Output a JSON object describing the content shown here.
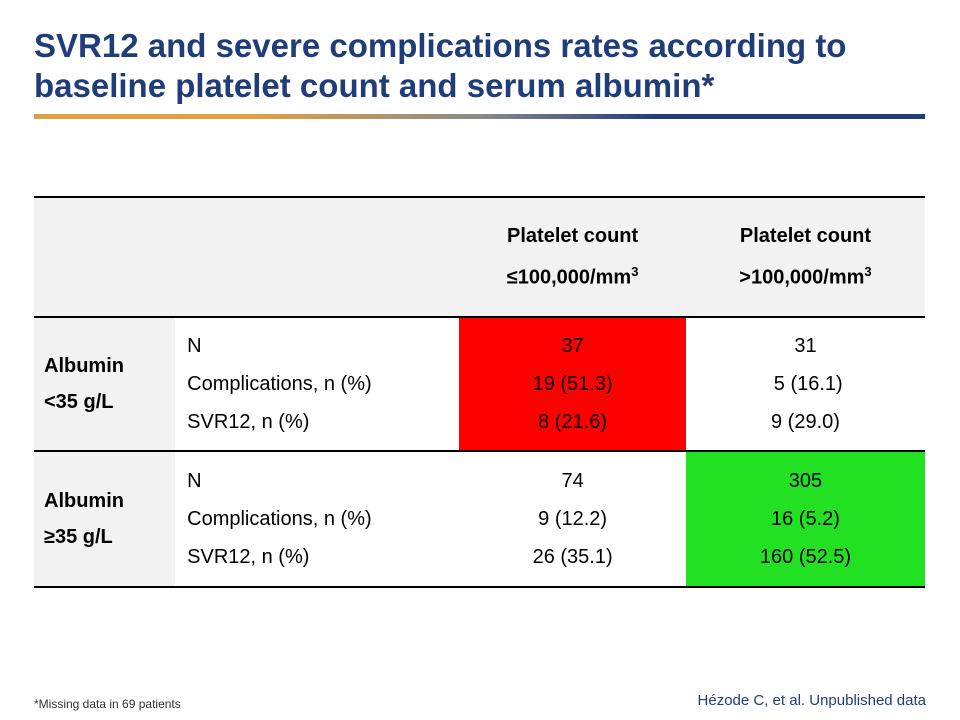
{
  "title": "SVR12 and severe complications rates according to baseline platelet count and serum albumin*",
  "colors": {
    "title": "#1f3d7a",
    "highlight_bad": "#ff0000",
    "highlight_good": "#22e022",
    "header_bg": "#f2f2f2"
  },
  "table": {
    "col_a": {
      "line1": "Platelet count",
      "line2": "≤100,000/mm",
      "sup": "3"
    },
    "col_b": {
      "line1": "Platelet count",
      "line2": ">100,000/mm",
      "sup": "3"
    },
    "metric_labels": [
      "N",
      "Complications, n (%)",
      "SVR12, n (%)"
    ],
    "rows": [
      {
        "label_line1": "Albumin",
        "label_line2": "<35 g/L",
        "col_a": [
          "37",
          "19 (51.3)",
          "8 (21.6)"
        ],
        "col_b": [
          "31",
          " 5 (16.1)",
          "9 (29.0)"
        ]
      },
      {
        "label_line1": "Albumin",
        "label_line2": "≥35 g/L",
        "col_a": [
          "74",
          "9 (12.2)",
          "26 (35.1)"
        ],
        "col_b": [
          "305",
          "16 (5.2)",
          "160 (52.5)"
        ]
      }
    ]
  },
  "footnote": "*Missing data in 69 patients",
  "source": "Hézode C, et al. Unpublished data"
}
